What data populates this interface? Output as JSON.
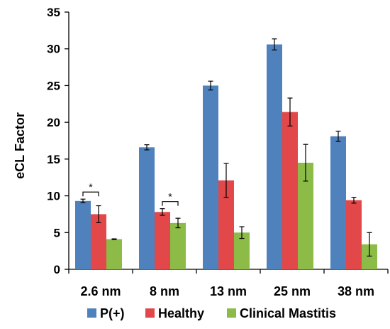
{
  "chart_data": {
    "type": "bar",
    "ylabel": "eCL Factor",
    "xlabel": "",
    "ylim": [
      0,
      35
    ],
    "yticks": [
      0,
      5,
      10,
      15,
      20,
      25,
      30,
      35
    ],
    "categories": [
      "2.6 nm",
      "8 nm",
      "13 nm",
      "25 nm",
      "38 nm"
    ],
    "series": [
      {
        "name": "P(+)",
        "color": "#4f81bd",
        "values": [
          9.3,
          16.6,
          25.0,
          30.6,
          18.1
        ],
        "errors": [
          0.25,
          0.35,
          0.6,
          0.75,
          0.7
        ]
      },
      {
        "name": "Healthy",
        "color": "#e2474a",
        "values": [
          7.5,
          7.8,
          12.1,
          21.4,
          9.4
        ],
        "errors": [
          1.15,
          0.45,
          2.3,
          1.9,
          0.4
        ]
      },
      {
        "name": "Clinical Mastitis",
        "color": "#8cbb47",
        "values": [
          4.1,
          6.3,
          5.0,
          14.5,
          3.4
        ],
        "errors": [
          0.05,
          0.65,
          0.8,
          2.5,
          1.6
        ]
      }
    ],
    "significance": [
      {
        "category": 0,
        "between": [
          0,
          1
        ],
        "label": "*"
      },
      {
        "category": 1,
        "between": [
          1,
          2
        ],
        "label": "*"
      }
    ],
    "legend_position": "bottom",
    "grid": false
  }
}
